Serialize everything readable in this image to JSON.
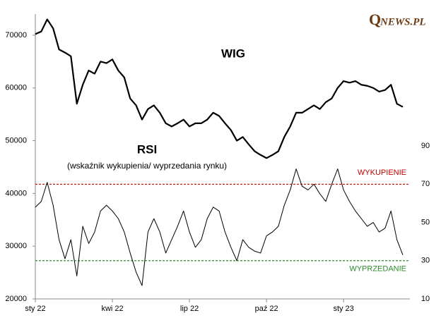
{
  "chart_data": {
    "type": "line",
    "logo": {
      "initial": "Q",
      "rest": "NEWS.PL"
    },
    "annotation": "(wskaźnik wykupienia/ wyprzedania rynku)",
    "categories": [
      "sty 22",
      null,
      null,
      null,
      null,
      null,
      null,
      null,
      null,
      null,
      null,
      null,
      null,
      "kwi 22",
      null,
      null,
      null,
      null,
      null,
      null,
      null,
      null,
      null,
      null,
      null,
      null,
      "lip 22",
      null,
      null,
      null,
      null,
      null,
      null,
      null,
      null,
      null,
      null,
      null,
      null,
      "paź 22",
      null,
      null,
      null,
      null,
      null,
      null,
      null,
      null,
      null,
      null,
      null,
      null,
      "sty 23",
      null,
      null,
      null,
      null,
      null,
      null,
      null,
      null,
      null,
      null
    ],
    "series": [
      {
        "name": "WIG",
        "color": "#000000",
        "values": [
          70200,
          70700,
          73000,
          71300,
          67300,
          66700,
          66000,
          57000,
          60600,
          63300,
          62700,
          65000,
          64700,
          65400,
          63300,
          62000,
          58000,
          56700,
          54000,
          56000,
          56700,
          55300,
          53300,
          52700,
          53300,
          54000,
          52700,
          53300,
          53300,
          54000,
          55300,
          54700,
          53300,
          52000,
          50000,
          50700,
          49300,
          48000,
          47300,
          46700,
          47300,
          48000,
          50700,
          52700,
          55300,
          55300,
          56000,
          56700,
          56000,
          57300,
          58000,
          60000,
          61300,
          61000,
          61300,
          60600,
          60400,
          60000,
          59300,
          59600,
          60600,
          57000,
          56400
        ]
      },
      {
        "name": "RSI",
        "color": "#000000",
        "axis": "y2",
        "values": [
          58,
          61,
          71,
          59,
          41,
          31,
          41,
          22,
          48,
          39,
          45,
          56,
          59,
          56,
          52,
          45,
          34,
          24,
          17,
          45,
          52,
          45,
          34,
          41,
          48,
          56,
          45,
          37,
          41,
          52,
          58,
          56,
          45,
          37,
          30,
          41,
          37,
          35,
          34,
          43,
          45,
          48,
          59,
          67,
          78,
          69,
          67,
          70,
          65,
          61,
          70,
          78,
          67,
          61,
          56,
          52,
          48,
          50,
          45,
          47,
          56,
          41,
          33
        ]
      }
    ],
    "reference_lines": [
      {
        "value": 70,
        "label": "WYKUPIENIE",
        "color": "#c00000"
      },
      {
        "value": 30,
        "label": "WYPRZEDANIE",
        "color": "#2e8b2e"
      }
    ],
    "ylim": [
      20000,
      74000
    ],
    "yticks": [
      20000,
      30000,
      40000,
      50000,
      60000,
      70000
    ],
    "y2lim": [
      10,
      159
    ],
    "y2ticks": [
      10,
      30,
      50,
      70,
      90
    ],
    "grid": false
  }
}
